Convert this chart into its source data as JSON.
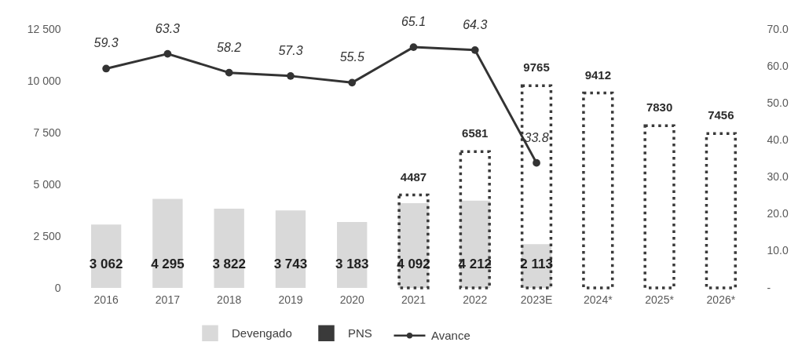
{
  "chart_data": {
    "type": "bar",
    "categories": [
      "2016",
      "2017",
      "2018",
      "2019",
      "2020",
      "2021",
      "2022",
      "2023E",
      "2024*",
      "2025*",
      "2026*"
    ],
    "series": [
      {
        "name": "Devengado",
        "color": "#d9d9d9",
        "values": [
          3062,
          4295,
          3822,
          3743,
          3183,
          4092,
          4212,
          2113,
          null,
          null,
          null
        ],
        "value_labels": [
          "3 062",
          "4 295",
          "3 822",
          "3 743",
          "3 183",
          "4 092",
          "4 212",
          "2 113",
          null,
          null,
          null
        ]
      },
      {
        "name": "PNS",
        "color": "#3a3a3a",
        "line_style": "dotted",
        "values": [
          null,
          null,
          null,
          null,
          null,
          4487,
          6581,
          9765,
          9412,
          7830,
          7456
        ],
        "value_labels": [
          null,
          null,
          null,
          null,
          null,
          "4487",
          "6581",
          "9765",
          "9412",
          "7830",
          "7456"
        ]
      },
      {
        "name": "Avance",
        "type": "line",
        "axis": "y2",
        "color": "#333333",
        "values": [
          59.3,
          63.3,
          58.2,
          57.3,
          55.5,
          65.1,
          64.3,
          33.8,
          null,
          null,
          null
        ],
        "value_labels": [
          "59.3",
          "63.3",
          "58.2",
          "57.3",
          "55.5",
          "65.1",
          "64.3",
          "33.8",
          null,
          null,
          null
        ]
      }
    ],
    "ylim": [
      0,
      12500
    ],
    "yticks": [
      0,
      {
        "value": 2500,
        "label": "2 500"
      },
      {
        "value": 5000,
        "label": "5 000"
      },
      {
        "value": 7500,
        "label": "7 500"
      },
      {
        "value": 10000,
        "label": "10 000"
      },
      {
        "value": 12500,
        "label": "12 500"
      }
    ],
    "y2lim": [
      0,
      70
    ],
    "y2ticks": [
      {
        "value": 0,
        "label": "-"
      },
      {
        "value": 10,
        "label": "10.0"
      },
      {
        "value": 20,
        "label": "20.0"
      },
      {
        "value": 30,
        "label": "30.0"
      },
      {
        "value": 40,
        "label": "40.0"
      },
      {
        "value": 50,
        "label": "50.0"
      },
      {
        "value": 60,
        "label": "60.0"
      },
      {
        "value": 70,
        "label": "70.0"
      }
    ],
    "legend": "bottom",
    "marker": "circle"
  }
}
